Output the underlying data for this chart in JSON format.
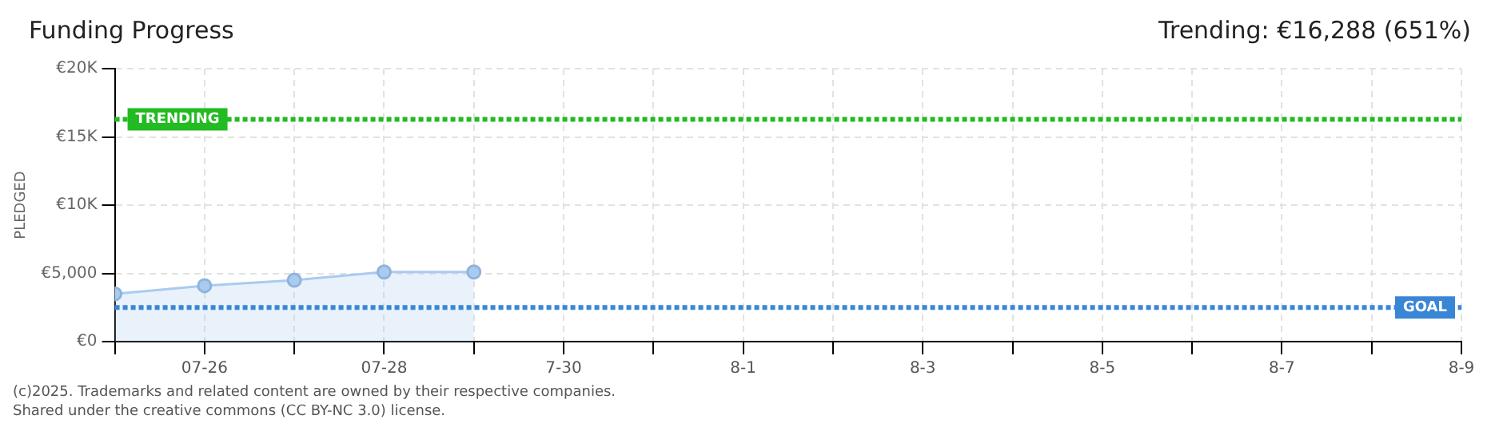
{
  "chart_data": {
    "type": "area",
    "title": "Funding Progress",
    "subtitle": "Trending: €16,288 (651%)",
    "ylabel": "PLEDGED",
    "x": [
      "--07-25",
      "--07-26",
      "--07-27",
      "--07-28",
      "--07-29"
    ],
    "series": [
      {
        "color": "#a9cbf0",
        "values": [
          3500,
          4100,
          4500,
          5100,
          5100
        ]
      }
    ],
    "marker": "circle",
    "grid": true,
    "legend": false,
    "xlim": [
      "--07-25",
      "--08-09"
    ],
    "xticks": [
      {
        "value": "--07-25",
        "label": null
      },
      {
        "value": "--07-26",
        "label": "07-26"
      },
      {
        "value": "--07-27",
        "label": null
      },
      {
        "value": "--07-28",
        "label": "07-28"
      },
      {
        "value": "--07-29",
        "label": null
      },
      {
        "value": "--07-30",
        "label": "7-30"
      },
      {
        "value": "--07-31",
        "label": null
      },
      {
        "value": "--08-01",
        "label": "8-1"
      },
      {
        "value": "--08-02",
        "label": null
      },
      {
        "value": "--08-03",
        "label": "8-3"
      },
      {
        "value": "--08-04",
        "label": null
      },
      {
        "value": "--08-05",
        "label": "8-5"
      },
      {
        "value": "--08-06",
        "label": null
      },
      {
        "value": "--08-07",
        "label": "8-7"
      },
      {
        "value": "--08-08",
        "label": null
      },
      {
        "value": "--08-09",
        "label": "8-9"
      }
    ],
    "ylim": [
      0,
      20000
    ],
    "yticks": [
      {
        "value": 0,
        "label": "€0"
      },
      {
        "value": 5000,
        "label": "€5,000"
      },
      {
        "value": 10000,
        "label": "€10K"
      },
      {
        "value": 15000,
        "label": "€15K"
      },
      {
        "value": 20000,
        "label": "€20K"
      }
    ],
    "ref_lines": [
      {
        "axis": "y",
        "value": 16288,
        "label": "TRENDING",
        "color": "#22bb22",
        "line_style": "dotted"
      },
      {
        "axis": "y",
        "value": 2500,
        "label": "GOAL",
        "color": "#3a86d6",
        "line_style": "dotted"
      }
    ],
    "annotations": [
      "(c)2025. Trademarks and related content are owned by their respective companies.",
      "Shared under the creative commons (CC BY-NC 3.0) license."
    ]
  }
}
